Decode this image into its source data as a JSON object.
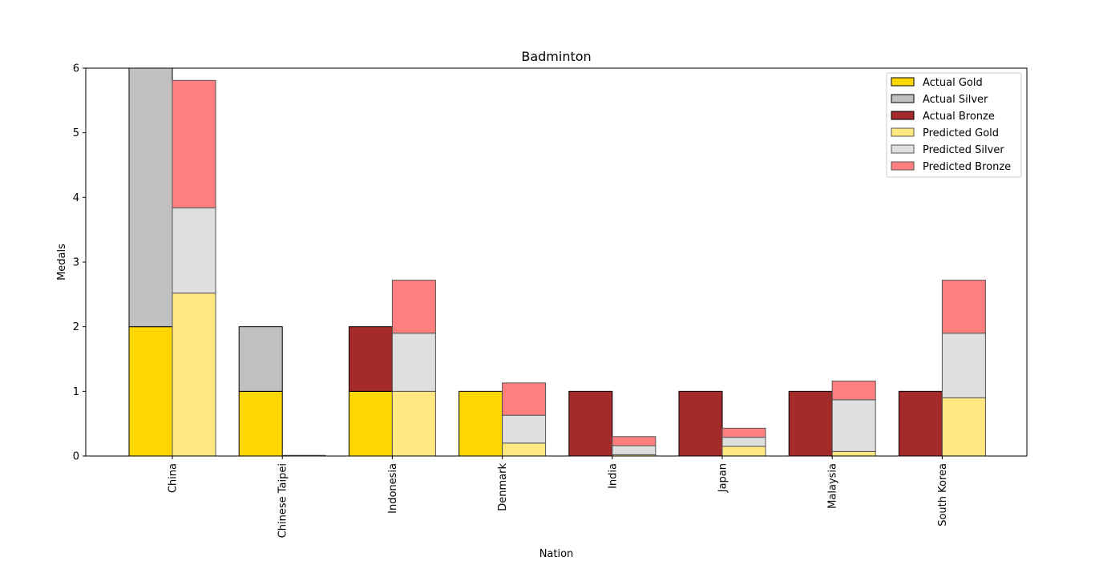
{
  "chart_data": {
    "type": "bar",
    "title": "Badminton",
    "xlabel": "Nation",
    "ylabel": "Medals",
    "ylim": [
      0,
      6
    ],
    "yticks": [
      0,
      1,
      2,
      3,
      4,
      5,
      6
    ],
    "grid": false,
    "legend_position": "top-right",
    "categories": [
      "China",
      "Chinese Taipei",
      "Indonesia",
      "Denmark",
      "India",
      "Japan",
      "Malaysia",
      "South Korea"
    ],
    "series": [
      {
        "name": "Actual Gold",
        "group": "actual",
        "color": "#FFD700",
        "edge": "#000000",
        "values": [
          2,
          1,
          1,
          1,
          0,
          0,
          0,
          0
        ]
      },
      {
        "name": "Actual Silver",
        "group": "actual",
        "color": "#C0C0C0",
        "edge": "#000000",
        "values": [
          4,
          1,
          0,
          0,
          0,
          0,
          0,
          0
        ]
      },
      {
        "name": "Actual Bronze",
        "group": "actual",
        "color": "#A52A2A",
        "edge": "#000000",
        "values": [
          0,
          0,
          1,
          0,
          1,
          1,
          1,
          1
        ]
      },
      {
        "name": "Predicted Gold",
        "group": "predicted",
        "color": "#FFE87F",
        "edge": "#555555",
        "values": [
          2.52,
          0.0,
          1.0,
          0.2,
          0.02,
          0.15,
          0.07,
          0.9
        ]
      },
      {
        "name": "Predicted Silver",
        "group": "predicted",
        "color": "#DFDFDF",
        "edge": "#555555",
        "values": [
          1.32,
          0.01,
          0.9,
          0.43,
          0.14,
          0.14,
          0.8,
          1.0
        ]
      },
      {
        "name": "Predicted Bronze",
        "group": "predicted",
        "color": "#FF7F7F",
        "edge": "#555555",
        "values": [
          1.97,
          0.0,
          0.82,
          0.5,
          0.14,
          0.14,
          0.29,
          0.82
        ]
      }
    ]
  }
}
